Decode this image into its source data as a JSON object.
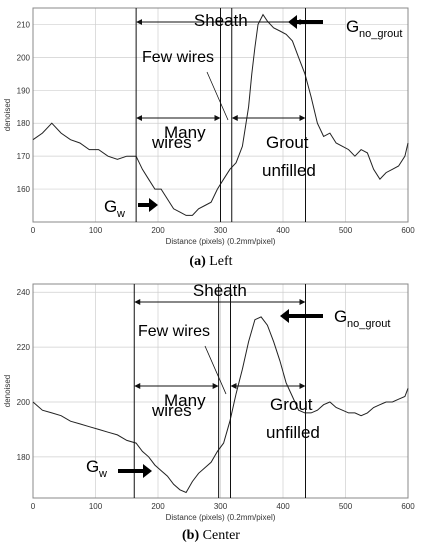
{
  "captions": [
    {
      "label": "(a)",
      "text": "Left"
    },
    {
      "label": "(b)",
      "text": "Center"
    }
  ],
  "chart_data": [
    {
      "type": "line",
      "ylabel": "denoised",
      "xlabel": "Distance (pixels) (0.2mm/pixel)",
      "xlim": [
        0,
        600
      ],
      "ylim": [
        150,
        215
      ],
      "xticks": [
        0,
        100,
        200,
        300,
        400,
        500,
        600
      ],
      "yticks": [
        160,
        170,
        180,
        190,
        200,
        210
      ],
      "grid": true,
      "series": [
        {
          "x": [
            0,
            15,
            30,
            45,
            60,
            75,
            90,
            105,
            120,
            135,
            150,
            165,
            175,
            185,
            195,
            205,
            215,
            225,
            235,
            245,
            255,
            265,
            275,
            285,
            295,
            305,
            315,
            325,
            335,
            345,
            350,
            355,
            360,
            368,
            375,
            385,
            395,
            405,
            415,
            425,
            435,
            445,
            455,
            465,
            475,
            485,
            495,
            505,
            515,
            525,
            535,
            545,
            555,
            565,
            575,
            585,
            595,
            600
          ],
          "y": [
            175,
            177,
            180,
            177,
            175,
            174,
            172,
            172,
            170,
            169,
            170,
            170,
            166,
            163,
            160,
            160,
            157,
            154,
            153,
            152,
            152,
            154,
            155,
            156,
            160,
            163,
            166,
            168,
            173,
            185,
            195,
            203,
            210,
            213,
            211,
            209,
            208,
            207,
            205,
            200,
            195,
            188,
            180,
            176,
            177,
            174,
            173,
            172,
            170,
            172,
            171,
            166,
            163,
            165,
            166,
            167,
            170,
            174
          ]
        }
      ],
      "annotations": [
        "Sheath",
        "Few wires",
        "Many wires",
        "Grout unfilled"
      ],
      "markers": {
        "g_w": "G",
        "g_w_sub": "w",
        "g_ng": "G",
        "g_ng_sub": "no_grout"
      },
      "vlines": [
        165,
        300,
        318,
        436
      ]
    },
    {
      "type": "line",
      "ylabel": "denoised",
      "xlabel": "Distance (pixels) (0.2mm/pixel)",
      "xlim": [
        0,
        600
      ],
      "ylim": [
        165,
        243
      ],
      "xticks": [
        0,
        100,
        200,
        300,
        400,
        500,
        600
      ],
      "yticks": [
        180,
        200,
        220,
        240
      ],
      "grid": true,
      "series": [
        {
          "x": [
            0,
            15,
            30,
            45,
            60,
            75,
            90,
            105,
            120,
            135,
            150,
            165,
            175,
            185,
            195,
            205,
            215,
            225,
            235,
            245,
            255,
            265,
            275,
            285,
            295,
            305,
            315,
            325,
            335,
            345,
            355,
            365,
            375,
            385,
            395,
            405,
            415,
            425,
            435,
            445,
            455,
            465,
            475,
            485,
            495,
            505,
            515,
            525,
            535,
            545,
            555,
            565,
            575,
            585,
            595,
            600
          ],
          "y": [
            200,
            197,
            196,
            195,
            193,
            192,
            191,
            190,
            189,
            188,
            186,
            185,
            182,
            180,
            177,
            175,
            173,
            170,
            168,
            167,
            171,
            174,
            176,
            178,
            182,
            185,
            193,
            203,
            212,
            222,
            230,
            231,
            228,
            222,
            215,
            207,
            202,
            197,
            196,
            196,
            197,
            199,
            200,
            198,
            197,
            196,
            196,
            195,
            196,
            198,
            199,
            200,
            200,
            201,
            202,
            205
          ]
        }
      ],
      "annotations": [
        "Sheath",
        "Few wires",
        "Many wires",
        "Grout unfilled"
      ],
      "markers": {
        "g_w": "G",
        "g_w_sub": "w",
        "g_ng": "G",
        "g_ng_sub": "no_grout"
      },
      "vlines": [
        162,
        297,
        316,
        436
      ]
    }
  ]
}
